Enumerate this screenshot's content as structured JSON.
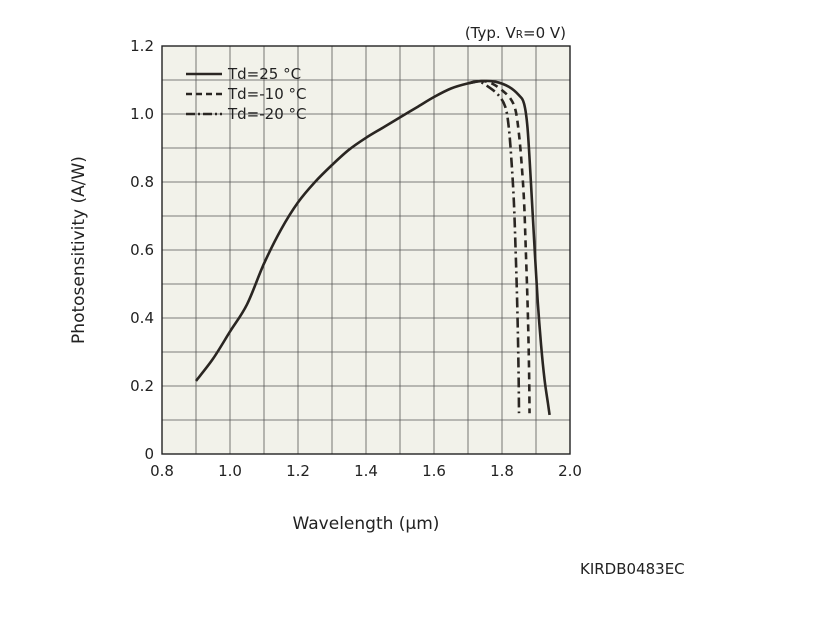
{
  "chart_data": {
    "type": "line",
    "condition": {
      "prefix": "(Typ. V",
      "sub": "R",
      "suffix": "=0 V)"
    },
    "xlabel": "Wavelength (µm)",
    "ylabel": "Photosensitivity (A/W)",
    "xlim": [
      0.8,
      2.0
    ],
    "ylim": [
      0,
      1.2
    ],
    "x_ticks": [
      "0.8",
      "1.0",
      "1.2",
      "1.4",
      "1.6",
      "1.8",
      "2.0"
    ],
    "y_ticks": [
      "0",
      "0.2",
      "0.4",
      "0.6",
      "0.8",
      "1.0",
      "1.2"
    ],
    "grid": true,
    "legend_position": "top-left",
    "series": [
      {
        "name": "Td=25 °C",
        "style": "solid",
        "points": [
          [
            0.9,
            0.215
          ],
          [
            0.95,
            0.28
          ],
          [
            1.0,
            0.36
          ],
          [
            1.05,
            0.44
          ],
          [
            1.1,
            0.56
          ],
          [
            1.15,
            0.66
          ],
          [
            1.2,
            0.74
          ],
          [
            1.25,
            0.8
          ],
          [
            1.3,
            0.85
          ],
          [
            1.35,
            0.895
          ],
          [
            1.4,
            0.93
          ],
          [
            1.45,
            0.96
          ],
          [
            1.5,
            0.99
          ],
          [
            1.55,
            1.02
          ],
          [
            1.6,
            1.05
          ],
          [
            1.65,
            1.075
          ],
          [
            1.7,
            1.09
          ],
          [
            1.74,
            1.097
          ],
          [
            1.78,
            1.095
          ],
          [
            1.82,
            1.08
          ],
          [
            1.85,
            1.055
          ],
          [
            1.865,
            1.03
          ],
          [
            1.875,
            0.96
          ],
          [
            1.885,
            0.8
          ],
          [
            1.895,
            0.62
          ],
          [
            1.905,
            0.45
          ],
          [
            1.915,
            0.32
          ],
          [
            1.925,
            0.22
          ],
          [
            1.935,
            0.15
          ],
          [
            1.94,
            0.115
          ]
        ]
      },
      {
        "name": "Td=-10 °C",
        "style": "dashed",
        "points": [
          [
            1.7,
            1.09
          ],
          [
            1.74,
            1.097
          ],
          [
            1.77,
            1.09
          ],
          [
            1.8,
            1.07
          ],
          [
            1.825,
            1.045
          ],
          [
            1.84,
            1.01
          ],
          [
            1.85,
            0.94
          ],
          [
            1.858,
            0.85
          ],
          [
            1.865,
            0.74
          ],
          [
            1.87,
            0.6
          ],
          [
            1.875,
            0.45
          ],
          [
            1.878,
            0.33
          ],
          [
            1.88,
            0.22
          ],
          [
            1.881,
            0.12
          ]
        ]
      },
      {
        "name": "Td=-20 °C",
        "style": "dashdot",
        "points": [
          [
            1.7,
            1.09
          ],
          [
            1.73,
            1.096
          ],
          [
            1.76,
            1.08
          ],
          [
            1.79,
            1.055
          ],
          [
            1.81,
            1.02
          ],
          [
            1.82,
            0.96
          ],
          [
            1.828,
            0.86
          ],
          [
            1.835,
            0.74
          ],
          [
            1.84,
            0.6
          ],
          [
            1.844,
            0.47
          ],
          [
            1.847,
            0.34
          ],
          [
            1.849,
            0.22
          ],
          [
            1.85,
            0.12
          ]
        ]
      }
    ]
  },
  "document_code": "KIRDB0483EC"
}
